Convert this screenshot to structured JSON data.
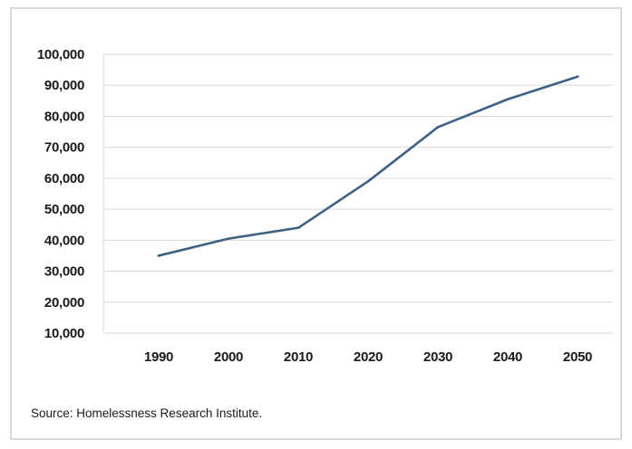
{
  "chart_data": {
    "type": "line",
    "title": "",
    "xlabel": "",
    "ylabel": "",
    "x": [
      "1990",
      "2000",
      "2010",
      "2020",
      "2030",
      "2040",
      "2050"
    ],
    "series": [
      {
        "name": "",
        "values": [
          35000,
          40500,
          44000,
          59000,
          76500,
          85500,
          92800
        ],
        "color": "#3f6185"
      }
    ],
    "ylim": [
      10000,
      100000
    ],
    "y_ticks": [
      10000,
      20000,
      30000,
      40000,
      50000,
      60000,
      70000,
      80000,
      90000,
      100000
    ],
    "y_tick_labels": [
      "10,000",
      "20,000",
      "30,000",
      "40,000",
      "50,000",
      "60,000",
      "70,000",
      "80,000",
      "90,000",
      "100,000"
    ],
    "grid": true,
    "gridline_color": "#d9d9d9",
    "legend": "none"
  },
  "source": "Source: Homelessness Research Institute."
}
